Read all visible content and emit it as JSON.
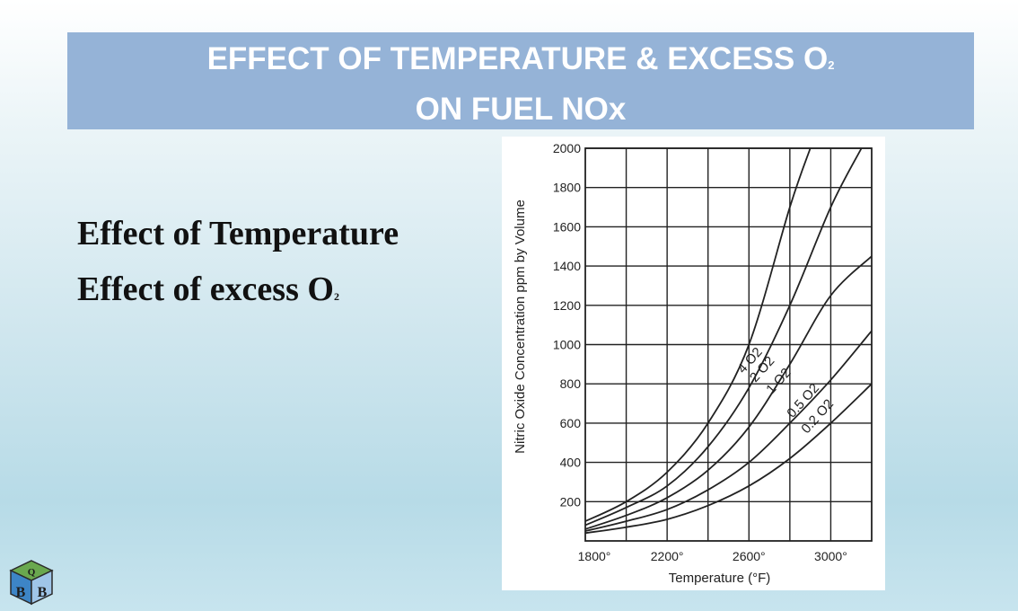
{
  "slide": {
    "title_line1": "EFFECT OF TEMPERATURE & EXCESS O",
    "title_line1_sub": "2",
    "title_line2": "ON FUEL NOx",
    "bullets": [
      {
        "text": "Effect of Temperature",
        "sub": ""
      },
      {
        "text": "Effect of excess O",
        "sub": "2"
      }
    ]
  },
  "chart_data": {
    "type": "line",
    "xlabel": "Temperature (°F)",
    "ylabel": "Nitric Oxide Concentration ppm by Volume",
    "xlim": [
      1800,
      3200
    ],
    "ylim": [
      0,
      2000
    ],
    "x_ticks": [
      1800,
      2200,
      2600,
      3000
    ],
    "x_tick_labels": [
      "1800°",
      "2200°",
      "2600°",
      "3000°"
    ],
    "y_ticks": [
      200,
      400,
      600,
      800,
      1000,
      1200,
      1400,
      1600,
      1800,
      2000
    ],
    "y_tick_labels": [
      "200",
      "400",
      "600",
      "800",
      "1000",
      "1200",
      "1400",
      "1600",
      "1800",
      "2000"
    ],
    "grid": true,
    "series": [
      {
        "name": "4 O2",
        "x": [
          1800,
          2000,
          2200,
          2400,
          2600,
          2800,
          2900
        ],
        "values": [
          100,
          200,
          350,
          600,
          1000,
          1700,
          2000
        ]
      },
      {
        "name": "2 O2",
        "x": [
          1800,
          2000,
          2200,
          2400,
          2600,
          2800,
          3000,
          3150
        ],
        "values": [
          80,
          170,
          280,
          480,
          780,
          1200,
          1700,
          2000
        ]
      },
      {
        "name": "1 O2",
        "x": [
          1800,
          2000,
          2200,
          2400,
          2600,
          2800,
          3000,
          3200
        ],
        "values": [
          60,
          130,
          220,
          360,
          580,
          900,
          1250,
          1450
        ]
      },
      {
        "name": "0.5 O2",
        "x": [
          1800,
          2000,
          2200,
          2400,
          2600,
          2800,
          3000,
          3200
        ],
        "values": [
          50,
          100,
          160,
          260,
          400,
          600,
          820,
          1070
        ]
      },
      {
        "name": "0.2 O2",
        "x": [
          1800,
          2000,
          2200,
          2400,
          2600,
          2800,
          3000,
          3200
        ],
        "values": [
          40,
          70,
          110,
          180,
          280,
          420,
          600,
          800
        ]
      }
    ]
  },
  "colors": {
    "title_bar": "#95b3d7",
    "title_text": "#ffffff",
    "body_text": "#111111",
    "curve": "#222222"
  },
  "logo": {
    "icon": "company-cube-logo-icon",
    "letters": "QBB"
  }
}
